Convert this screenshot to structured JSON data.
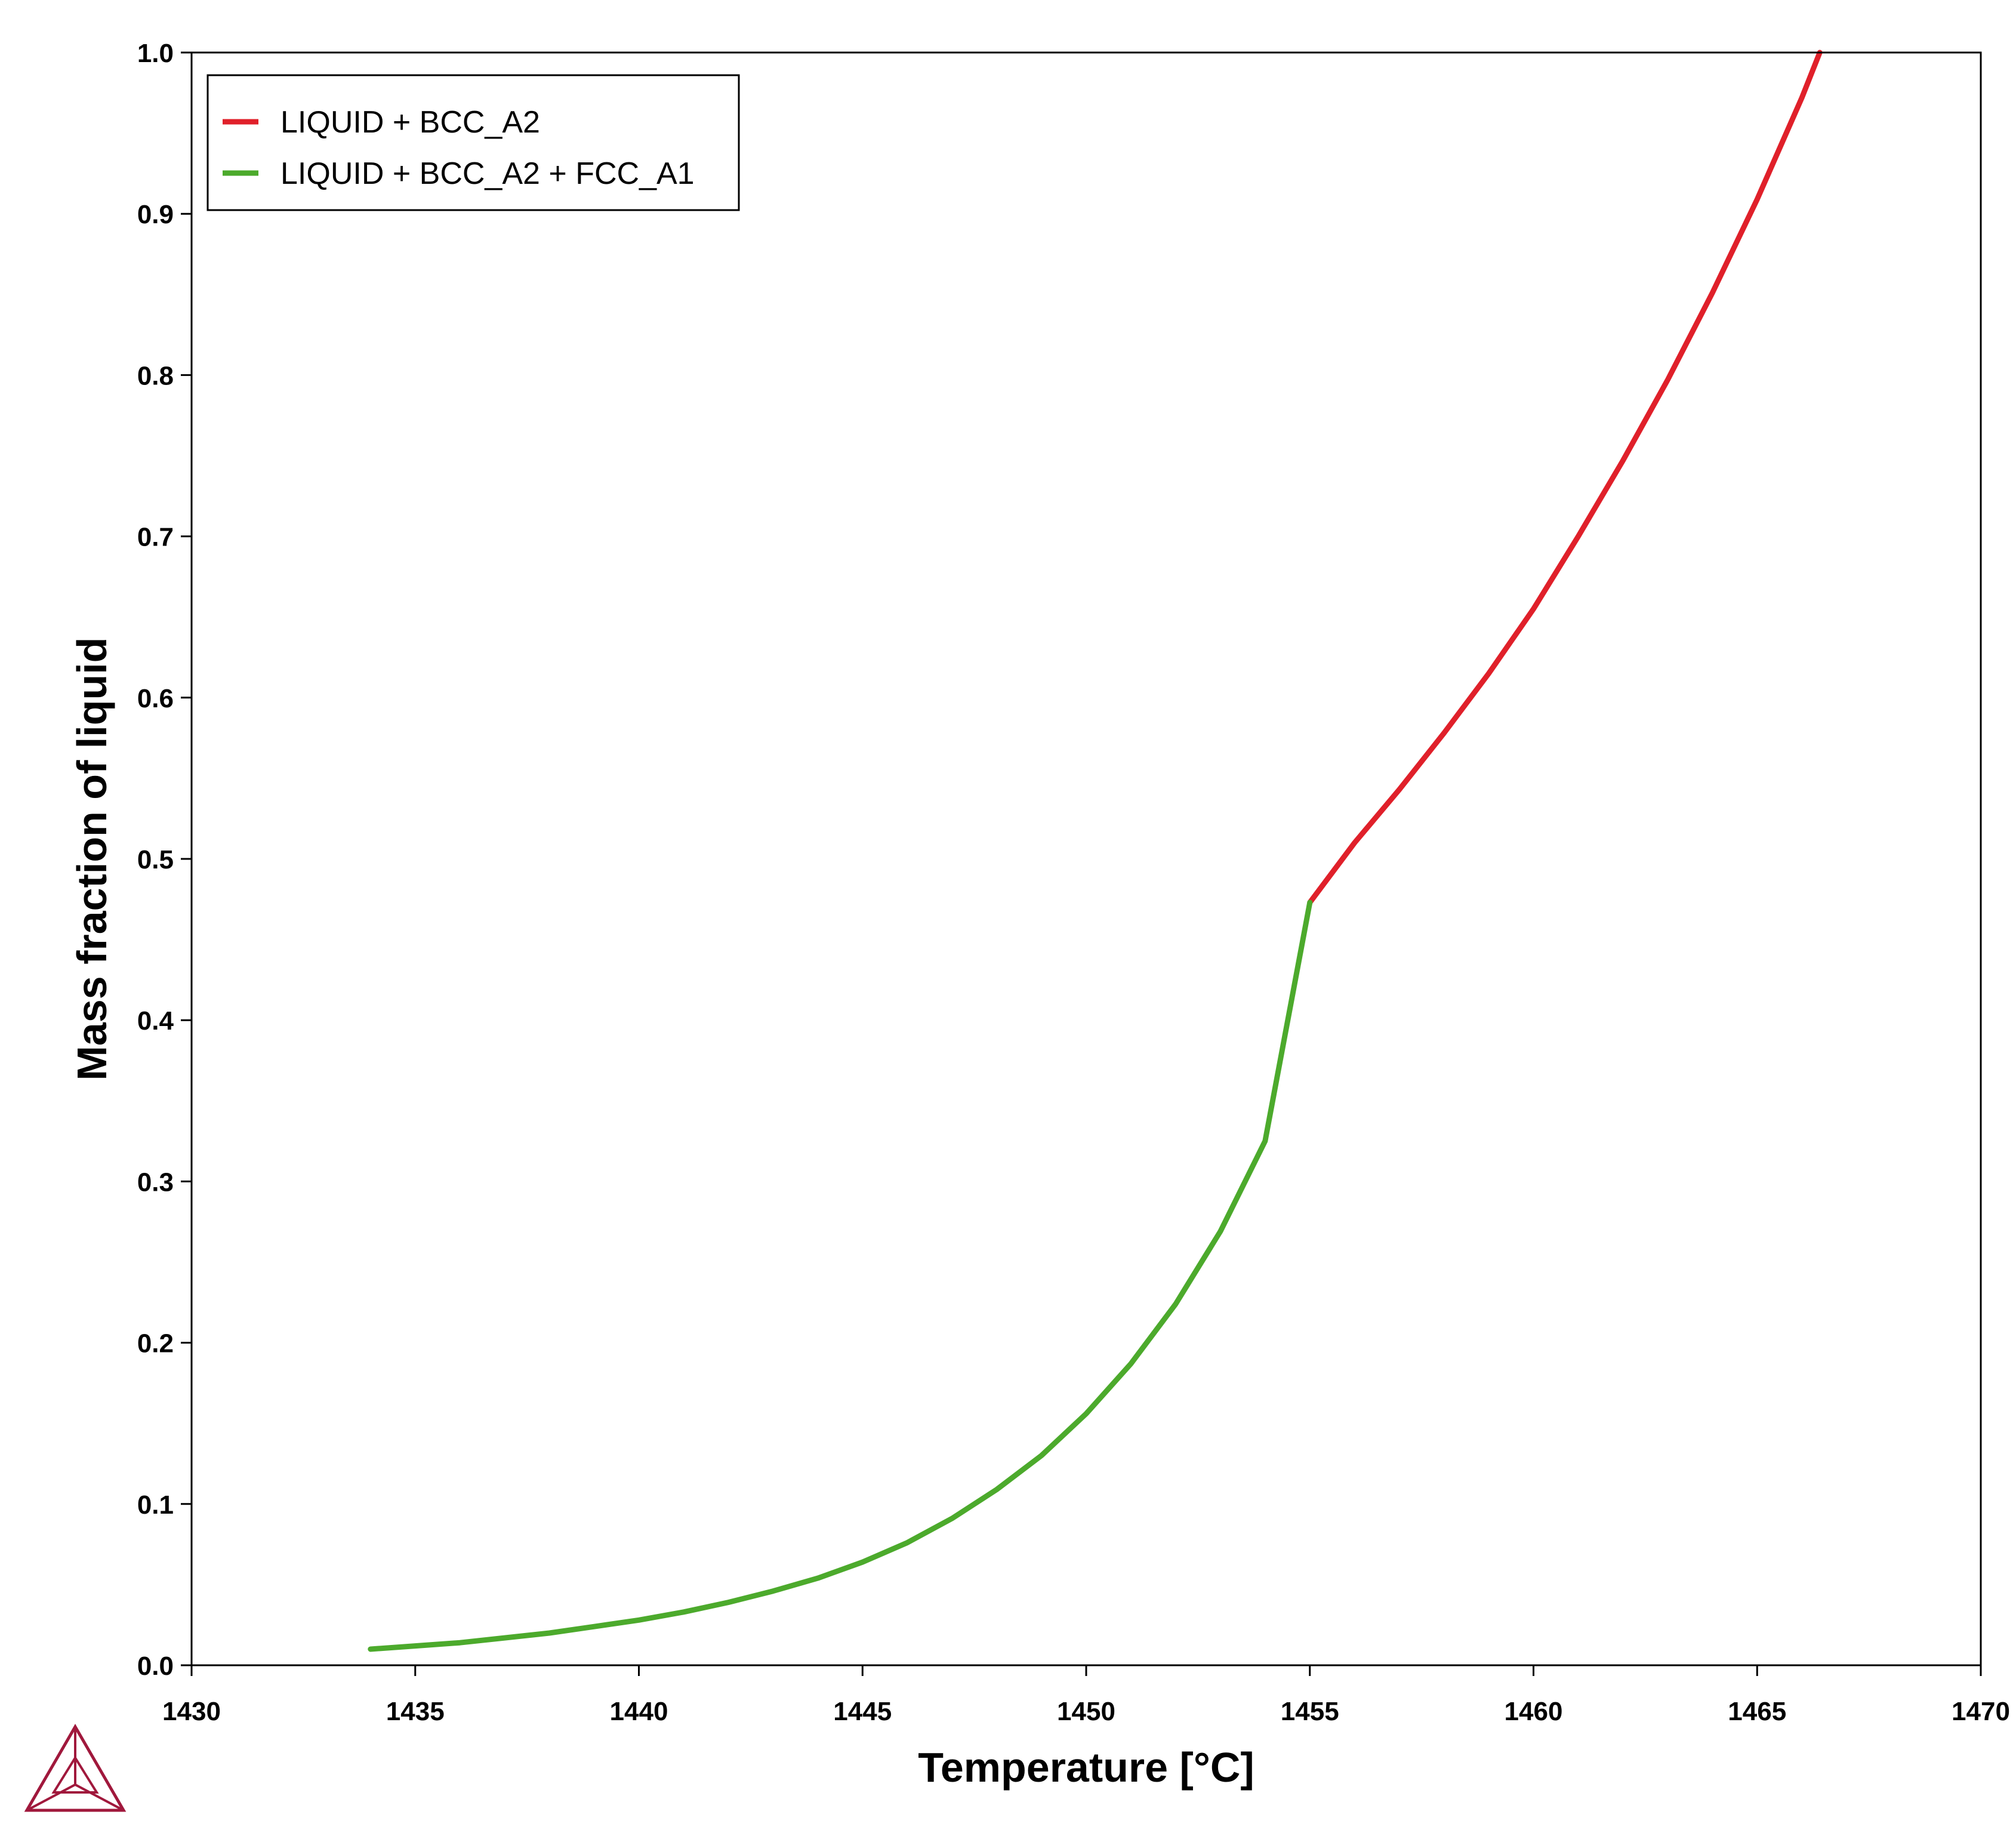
{
  "chart_data": {
    "type": "line",
    "title": "",
    "xlabel": "Temperature [°C]",
    "ylabel": "Mass fraction of liquid",
    "xlim": [
      1430,
      1470
    ],
    "ylim": [
      0.0,
      1.0
    ],
    "xticks": [
      "1430",
      "1435",
      "1440",
      "1445",
      "1450",
      "1455",
      "1460",
      "1465",
      "1470"
    ],
    "yticks": [
      "0.0",
      "0.1",
      "0.2",
      "0.3",
      "0.4",
      "0.5",
      "0.6",
      "0.7",
      "0.8",
      "0.9",
      "1.0"
    ],
    "grid": false,
    "legend_position": "top-left",
    "series": [
      {
        "name": "LIQUID + BCC_A2",
        "color": "#e0202a",
        "x": [
          1455.0,
          1456.0,
          1457.0,
          1458.0,
          1459.0,
          1460.0,
          1461.0,
          1462.0,
          1463.0,
          1464.0,
          1465.0,
          1466.0,
          1466.4
        ],
        "y": [
          0.473,
          0.51,
          0.543,
          0.578,
          0.615,
          0.655,
          0.7,
          0.747,
          0.797,
          0.851,
          0.909,
          0.972,
          1.0
        ]
      },
      {
        "name": "LIQUID + BCC_A2 + FCC_A1",
        "color": "#4caa2c",
        "x": [
          1434,
          1435,
          1436,
          1437,
          1438,
          1439,
          1440,
          1441,
          1442,
          1443,
          1444,
          1445,
          1446,
          1447,
          1448,
          1449,
          1450,
          1451,
          1452,
          1453,
          1454,
          1455
        ],
        "y": [
          0.01,
          0.012,
          0.014,
          0.017,
          0.02,
          0.024,
          0.028,
          0.033,
          0.039,
          0.046,
          0.054,
          0.064,
          0.076,
          0.091,
          0.109,
          0.13,
          0.156,
          0.187,
          0.224,
          0.269,
          0.325,
          0.473
        ]
      }
    ]
  },
  "logo": {
    "name": "thermo-calc-logo",
    "color": "#a0183c"
  }
}
